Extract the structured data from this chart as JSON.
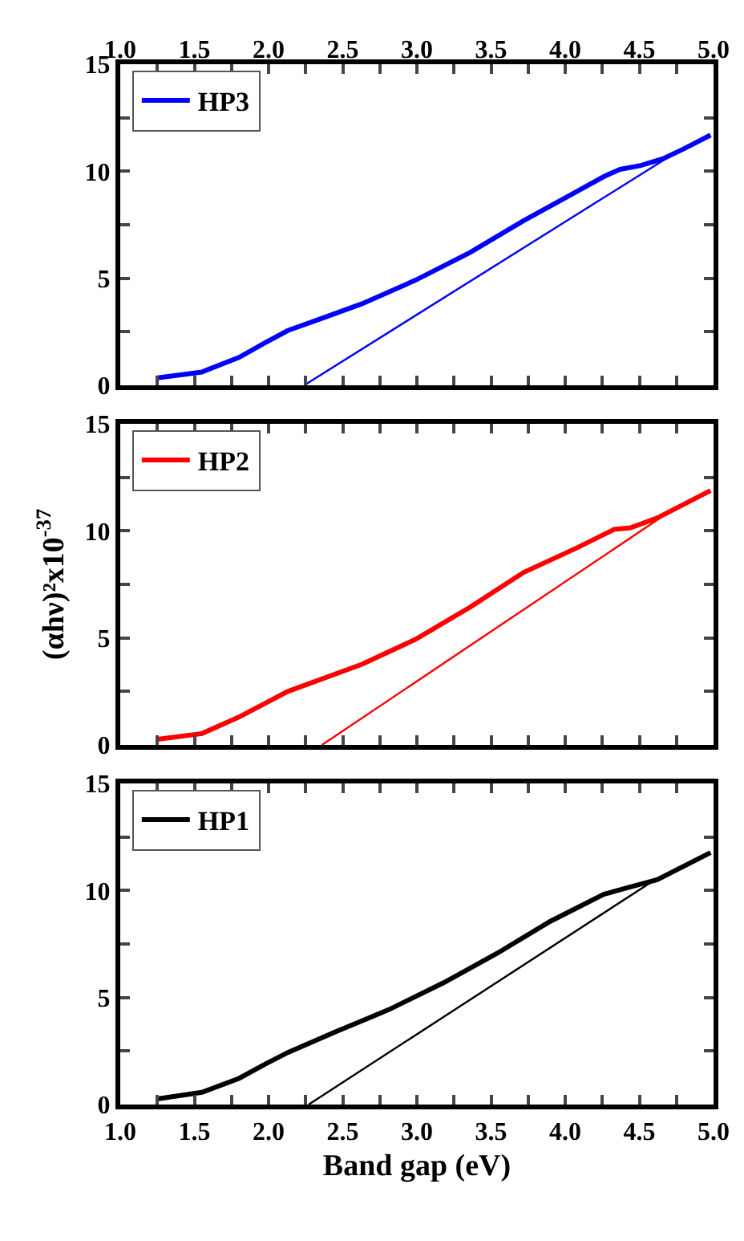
{
  "chart_data": [
    {
      "type": "line",
      "xlim": [
        1.0,
        5.0
      ],
      "xticks": [
        1,
        {
          "value": 1.25,
          "label": null
        },
        {
          "value": 1.5,
          "label": null
        },
        {
          "value": 1.75,
          "label": null
        },
        {
          "value": 2,
          "label": null
        },
        {
          "value": 2.25,
          "label": null
        },
        {
          "value": 2.5,
          "label": null
        },
        {
          "value": 2.75,
          "label": null
        },
        {
          "value": 3,
          "label": null
        },
        {
          "value": 3.25,
          "label": null
        },
        {
          "value": 3.5,
          "label": null
        },
        {
          "value": 3.75,
          "label": null
        },
        {
          "value": 4,
          "label": null
        },
        {
          "value": 4.25,
          "label": null
        },
        {
          "value": 4.5,
          "label": null
        },
        {
          "value": 4.75,
          "label": null
        },
        5
      ],
      "tick_labels": "y",
      "x2lim": [
        1.0,
        5.0
      ],
      "x2ticks": [
        {
          "value": 1,
          "label": "1.0"
        },
        {
          "value": 1.25,
          "label": null
        },
        1.5,
        {
          "value": 1.75,
          "label": null
        },
        {
          "value": 2,
          "label": "2.0"
        },
        {
          "value": 2.25,
          "label": null
        },
        2.5,
        {
          "value": 2.75,
          "label": null
        },
        {
          "value": 3,
          "label": "3.0"
        },
        {
          "value": 3.25,
          "label": null
        },
        3.5,
        {
          "value": 3.75,
          "label": null
        },
        {
          "value": 4,
          "label": "4.0"
        },
        {
          "value": 4.25,
          "label": null
        },
        4.5,
        {
          "value": 4.75,
          "label": null
        },
        {
          "value": 5,
          "label": "5.0"
        }
      ],
      "ylim": [
        0,
        15
      ],
      "yticks": [
        0,
        {
          "value": 2.5,
          "label": null
        },
        5,
        {
          "value": 7.5,
          "label": null
        },
        10,
        {
          "value": 12.5,
          "label": null
        },
        15
      ],
      "legend": "top left",
      "grid": false,
      "series": [
        {
          "name": "HP3",
          "color": "#0000ff",
          "x": [
            1.24,
            1.55,
            1.8,
            1.98,
            2.13,
            2.34,
            2.63,
            2.99,
            3.36,
            3.72,
            4.08,
            4.26,
            4.37,
            4.51,
            4.66,
            4.8,
            4.98
          ],
          "values": [
            0.34,
            0.62,
            1.3,
            2.0,
            2.56,
            3.08,
            3.81,
            4.91,
            6.21,
            7.69,
            9.06,
            9.75,
            10.09,
            10.27,
            10.59,
            11.05,
            11.69
          ]
        },
        {
          "color": "#0000ff",
          "x": [
            4.67,
            2.24
          ],
          "values": [
            10.55,
            0
          ]
        }
      ]
    },
    {
      "type": "line",
      "xlim": [
        1.0,
        5.0
      ],
      "xticks": [
        1.0,
        {
          "value": 1.25,
          "label": null
        },
        1.5,
        {
          "value": 1.75,
          "label": null
        },
        2.0,
        {
          "value": 2.25,
          "label": null
        },
        2.5,
        {
          "value": 2.75,
          "label": null
        },
        3.0,
        {
          "value": 3.25,
          "label": null
        },
        3.5,
        {
          "value": 3.75,
          "label": null
        },
        4.0,
        {
          "value": 4.25,
          "label": null
        },
        4.5,
        {
          "value": 4.75,
          "label": null
        },
        5.0
      ],
      "ylim": [
        0,
        15
      ],
      "yticks": [
        0,
        {
          "value": 2.5,
          "label": null
        },
        5,
        {
          "value": 7.5,
          "label": null
        },
        10,
        {
          "value": 12.5,
          "label": null
        },
        15
      ],
      "tick_labels": "y",
      "ylabel": "(αhν)²x10$^{-37}$",
      "legend": "top left",
      "grid": false,
      "series": [
        {
          "name": "HP2",
          "color": "#ff0000",
          "x": [
            1.24,
            1.55,
            1.8,
            2.13,
            2.63,
            2.99,
            3.36,
            3.72,
            4.08,
            4.33,
            4.44,
            4.62,
            4.98
          ],
          "values": [
            0.25,
            0.53,
            1.3,
            2.5,
            3.77,
            4.93,
            6.44,
            8.06,
            9.21,
            10.07,
            10.14,
            10.6,
            11.88
          ]
        },
        {
          "color": "#ff0000",
          "x": [
            4.64,
            2.36
          ],
          "values": [
            10.6,
            0
          ]
        }
      ]
    },
    {
      "type": "line",
      "xlim": [
        1.0,
        5.0
      ],
      "xticks": [
        {
          "value": 1,
          "label": "1.0"
        },
        {
          "value": 1.25,
          "label": null
        },
        1.5,
        {
          "value": 1.75,
          "label": null
        },
        {
          "value": 2,
          "label": "2.0"
        },
        {
          "value": 2.25,
          "label": null
        },
        2.5,
        {
          "value": 2.75,
          "label": null
        },
        {
          "value": 3,
          "label": "3.0"
        },
        {
          "value": 3.25,
          "label": null
        },
        3.5,
        {
          "value": 3.75,
          "label": null
        },
        {
          "value": 4,
          "label": "4.0"
        },
        {
          "value": 4.25,
          "label": null
        },
        4.5,
        {
          "value": 4.75,
          "label": null
        },
        {
          "value": 5,
          "label": "5.0"
        }
      ],
      "ylim": [
        0,
        15
      ],
      "yticks": [
        0,
        {
          "value": 2.5,
          "label": null
        },
        5,
        {
          "value": 7.5,
          "label": null
        },
        10,
        {
          "value": 12.5,
          "label": null
        },
        15
      ],
      "xlabel": "Band gap (eV)",
      "legend": "top left",
      "grid": false,
      "series": [
        {
          "name": "HP1",
          "color": "#000000",
          "x": [
            1.24,
            1.55,
            1.8,
            1.98,
            2.13,
            2.45,
            2.81,
            3.18,
            3.54,
            3.9,
            4.26,
            4.4,
            4.62,
            4.98
          ],
          "values": [
            0.25,
            0.57,
            1.22,
            1.9,
            2.43,
            3.39,
            4.43,
            5.69,
            7.06,
            8.56,
            9.82,
            10.09,
            10.5,
            11.77
          ]
        },
        {
          "color": "#000000",
          "x": [
            4.58,
            2.27
          ],
          "values": [
            10.39,
            0
          ]
        }
      ]
    }
  ]
}
